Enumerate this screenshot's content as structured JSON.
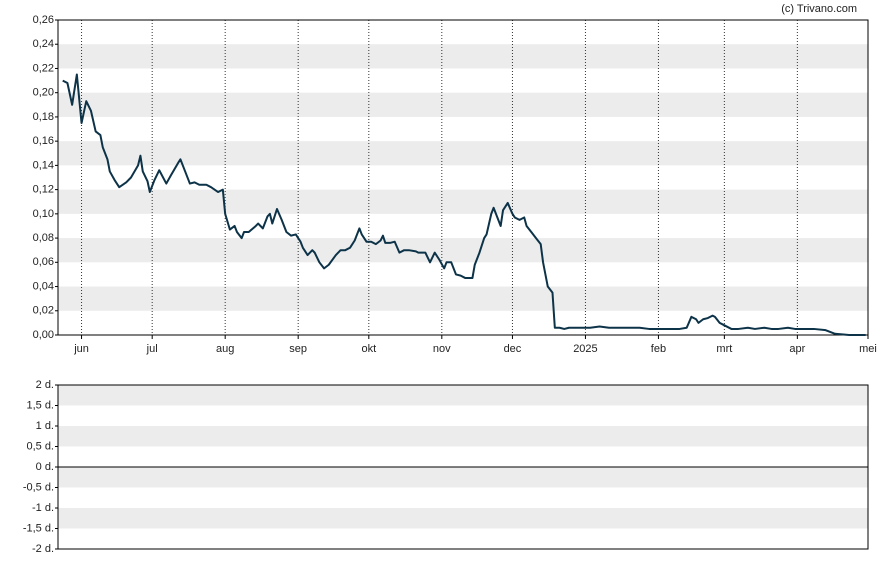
{
  "chart_data": [
    {
      "type": "line",
      "annotation": "(c) Trivano.com",
      "x": [
        2,
        4,
        6,
        8,
        10,
        12,
        14,
        16,
        18,
        19,
        21,
        22,
        24,
        26,
        29,
        31,
        34,
        35,
        36,
        38,
        39,
        41,
        43,
        46,
        48,
        51,
        52,
        54,
        56,
        58,
        60,
        63,
        65,
        68,
        70,
        71,
        73,
        75,
        76,
        78,
        79,
        81,
        84,
        85,
        87,
        89,
        90,
        91,
        93,
        95,
        97,
        99,
        101,
        103,
        104,
        106,
        108,
        109,
        111,
        113,
        115,
        118,
        120,
        122,
        124,
        126,
        128,
        129,
        131,
        133,
        135,
        137,
        138,
        139,
        141,
        143,
        145,
        147,
        149,
        152,
        153,
        156,
        158,
        160,
        162,
        164,
        165,
        167,
        169,
        171,
        173,
        176,
        177,
        179,
        181,
        182,
        184,
        185,
        188,
        189,
        191,
        193,
        194,
        196,
        198,
        199,
        201,
        203,
        205,
        206,
        208,
        210,
        211,
        213,
        215,
        217,
        222,
        226,
        230,
        234,
        239,
        243,
        247,
        251,
        256,
        260,
        264,
        267,
        269,
        271,
        272,
        274,
        276,
        278,
        279,
        281,
        283,
        286,
        289,
        293,
        296,
        300,
        303,
        306,
        310,
        313,
        317,
        321,
        326,
        330,
        336,
        343
      ],
      "series": [
        {
          "color": "#0d3349",
          "values": [
            0.21,
            0.208,
            0.19,
            0.215,
            0.175,
            0.193,
            0.185,
            0.168,
            0.165,
            0.155,
            0.145,
            0.135,
            0.128,
            0.122,
            0.126,
            0.13,
            0.14,
            0.148,
            0.135,
            0.127,
            0.118,
            0.128,
            0.136,
            0.125,
            0.132,
            0.142,
            0.145,
            0.135,
            0.125,
            0.126,
            0.124,
            0.124,
            0.122,
            0.118,
            0.12,
            0.1,
            0.087,
            0.09,
            0.085,
            0.08,
            0.085,
            0.085,
            0.09,
            0.092,
            0.088,
            0.098,
            0.1,
            0.092,
            0.104,
            0.095,
            0.085,
            0.082,
            0.083,
            0.077,
            0.072,
            0.066,
            0.07,
            0.068,
            0.06,
            0.055,
            0.058,
            0.066,
            0.07,
            0.07,
            0.072,
            0.078,
            0.088,
            0.083,
            0.077,
            0.077,
            0.075,
            0.078,
            0.082,
            0.076,
            0.076,
            0.077,
            0.068,
            0.07,
            0.07,
            0.069,
            0.068,
            0.068,
            0.06,
            0.068,
            0.062,
            0.055,
            0.06,
            0.06,
            0.05,
            0.049,
            0.047,
            0.047,
            0.058,
            0.068,
            0.08,
            0.083,
            0.1,
            0.105,
            0.09,
            0.103,
            0.109,
            0.1,
            0.097,
            0.095,
            0.097,
            0.09,
            0.085,
            0.08,
            0.075,
            0.06,
            0.04,
            0.035,
            0.006,
            0.006,
            0.005,
            0.006,
            0.006,
            0.006,
            0.007,
            0.006,
            0.006,
            0.006,
            0.006,
            0.005,
            0.005,
            0.005,
            0.005,
            0.006,
            0.015,
            0.013,
            0.01,
            0.013,
            0.014,
            0.016,
            0.015,
            0.01,
            0.008,
            0.005,
            0.005,
            0.006,
            0.005,
            0.006,
            0.005,
            0.005,
            0.006,
            0.005,
            0.005,
            0.005,
            0.004,
            0.001,
            0,
            0
          ]
        }
      ],
      "xlim": [
        0,
        344
      ],
      "xticks": [
        {
          "value": 10,
          "label": "jun"
        },
        {
          "value": 40,
          "label": "jul"
        },
        {
          "value": 71,
          "label": "aug"
        },
        {
          "value": 102,
          "label": "sep"
        },
        {
          "value": 132,
          "label": "okt"
        },
        {
          "value": 163,
          "label": "nov"
        },
        {
          "value": 193,
          "label": "dec"
        },
        {
          "value": 224,
          "label": "2025"
        },
        {
          "value": 255,
          "label": "feb"
        },
        {
          "value": 283,
          "label": "mrt"
        },
        {
          "value": 314,
          "label": "apr"
        },
        {
          "value": 344,
          "label": "mei"
        }
      ],
      "ylim": [
        0,
        0.26
      ],
      "yticks": [
        {
          "value": 0,
          "label": "0,00"
        },
        {
          "value": 0.02,
          "label": "0,02"
        },
        {
          "value": 0.04,
          "label": "0,04"
        },
        {
          "value": 0.06,
          "label": "0,06"
        },
        {
          "value": 0.08,
          "label": "0,08"
        },
        {
          "value": 0.1,
          "label": "0,10"
        },
        {
          "value": 0.12,
          "label": "0,12"
        },
        {
          "value": 0.14,
          "label": "0,14"
        },
        {
          "value": 0.16,
          "label": "0,16"
        },
        {
          "value": 0.18,
          "label": "0,18"
        },
        {
          "value": 0.2,
          "label": "0,20"
        },
        {
          "value": 0.22,
          "label": "0,22"
        },
        {
          "value": 0.24,
          "label": "0,24"
        },
        {
          "value": 0.26,
          "label": "0,26"
        }
      ],
      "grid": true
    },
    {
      "type": "line",
      "ylim": [
        -2,
        2
      ],
      "yticks": [
        {
          "value": 2,
          "label": "2 d."
        },
        {
          "value": 1.5,
          "label": "1,5 d."
        },
        {
          "value": 1,
          "label": "1 d."
        },
        {
          "value": 0.5,
          "label": "0,5 d."
        },
        {
          "value": 0,
          "label": "0 d."
        },
        {
          "value": -0.5,
          "label": "-0,5 d."
        },
        {
          "value": -1,
          "label": "-1 d."
        },
        {
          "value": -1.5,
          "label": "-1,5 d."
        },
        {
          "value": -2,
          "label": "-2 d."
        }
      ],
      "grid": true
    }
  ]
}
